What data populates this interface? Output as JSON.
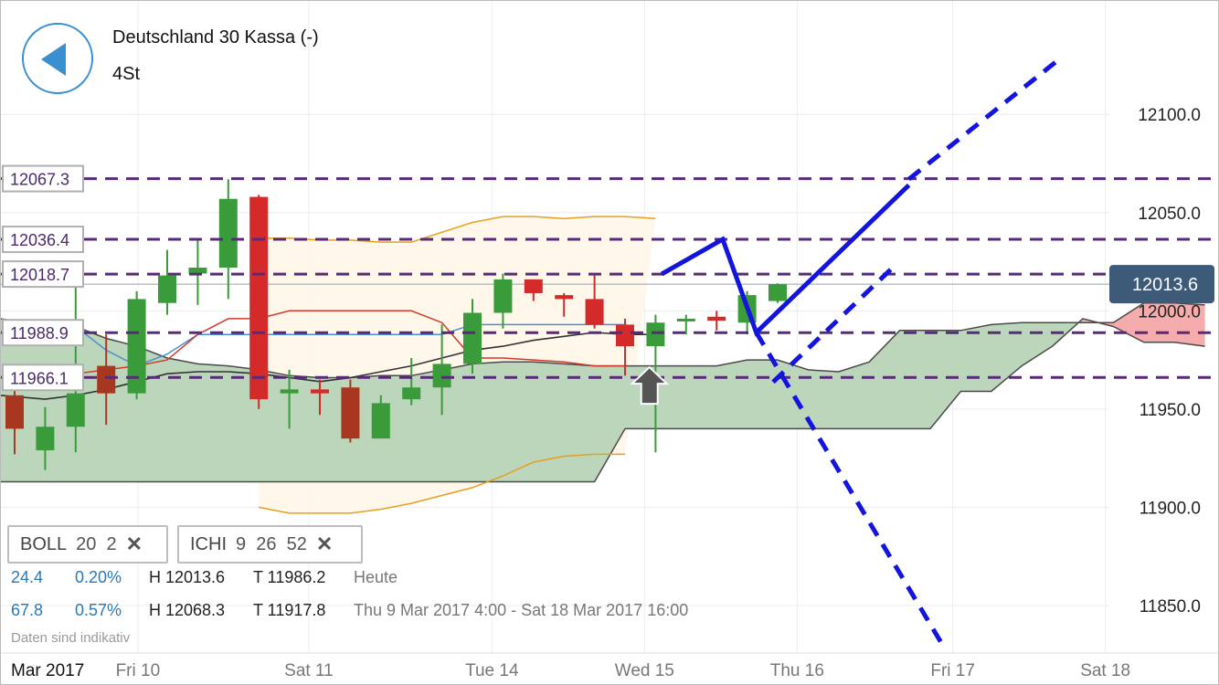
{
  "header": {
    "title": "Deutschland 30 Kassa (-)",
    "timeframe": "4St",
    "back_icon": "back-arrow-icon"
  },
  "indicators": [
    {
      "name": "BOLL",
      "params": "20  2"
    },
    {
      "name": "ICHI",
      "params": "9  26  52"
    }
  ],
  "info_rows": [
    {
      "change": "24.4",
      "change_pct": "0.20%",
      "high": "H 12013.6",
      "low": "T 11986.2",
      "period": "Heute"
    },
    {
      "change": "67.8",
      "change_pct": "0.57%",
      "high": "H 12068.3",
      "low": "T 11917.8",
      "period": "Thu 9 Mar 2017 4:00 - Sat 18 Mar 2017 16:00"
    }
  ],
  "disclaimer": "Daten sind indikativ",
  "chart_data": {
    "type": "candlestick",
    "instrument": "Deutschland 30 Kassa (-)",
    "interval": "4St",
    "colors": {
      "up": "#3a9b3a",
      "down": "#d42a2a",
      "down_dark": "#a8371f",
      "bollinger": "#e6a020",
      "tenkan": "#d03a2a",
      "kijun": "#4b8fd0",
      "chikou": "#333333",
      "cloud_bull": "#b8d4b8",
      "cloud_bear": "#f5a8a8",
      "level_line": "#5a2a7a",
      "drawing": "#1414e0",
      "current_price": "#3d5a78"
    },
    "y_axis": {
      "min": 11830,
      "max": 12148,
      "ticks": [
        "11850.0",
        "11900.0",
        "11950.0",
        "12000.0",
        "12050.0",
        "12100.0"
      ]
    },
    "x_axis": {
      "range": [
        -0.5,
        39
      ],
      "labels": [
        {
          "text": "Mar 2017",
          "x": -0.2,
          "bold": true
        },
        {
          "text": "Fri 10",
          "x": 3.2
        },
        {
          "text": "Sat 11",
          "x": 8.8
        },
        {
          "text": "Tue 14",
          "x": 14.8
        },
        {
          "text": "Wed 15",
          "x": 19.8
        },
        {
          "text": "Thu 16",
          "x": 24.8
        },
        {
          "text": "Fri 17",
          "x": 29.9
        },
        {
          "text": "Sat 18",
          "x": 34.9
        }
      ]
    },
    "current_price": {
      "label": "12013.6",
      "value": 12013.6
    },
    "levels": [
      {
        "label": "12067.3",
        "value": 12067.3
      },
      {
        "label": "12036.4",
        "value": 12036.4
      },
      {
        "label": "12018.7",
        "value": 12018.7
      },
      {
        "label": "11988.9",
        "value": 11988.9
      },
      {
        "label": "11966.1",
        "value": 11966.1
      }
    ],
    "candles": [
      {
        "o": 11957,
        "h": 11960,
        "l": 11927,
        "c": 11940,
        "dir": "down",
        "shade": "dark"
      },
      {
        "o": 11929,
        "h": 11951,
        "l": 11919,
        "c": 11941,
        "dir": "up"
      },
      {
        "o": 11941,
        "h": 12018,
        "l": 11928,
        "c": 11958,
        "dir": "up"
      },
      {
        "o": 11972,
        "h": 11988,
        "l": 11942,
        "c": 11958,
        "dir": "down",
        "shade": "dark"
      },
      {
        "o": 11958,
        "h": 12010,
        "l": 11955,
        "c": 12006,
        "dir": "up"
      },
      {
        "o": 12004,
        "h": 12031,
        "l": 11998,
        "c": 12018,
        "dir": "up"
      },
      {
        "o": 12019,
        "h": 12036,
        "l": 12003,
        "c": 12022,
        "dir": "up"
      },
      {
        "o": 12022,
        "h": 12067,
        "l": 12006,
        "c": 12057,
        "dir": "up"
      },
      {
        "o": 12058,
        "h": 12059,
        "l": 11950,
        "c": 11955,
        "dir": "down"
      },
      {
        "o": 11960,
        "h": 11970,
        "l": 11940,
        "c": 11958,
        "dir": "up"
      },
      {
        "o": 11960,
        "h": 11965,
        "l": 11947,
        "c": 11958,
        "dir": "down"
      },
      {
        "o": 11961,
        "h": 11965,
        "l": 11933,
        "c": 11935,
        "dir": "down",
        "shade": "dark"
      },
      {
        "o": 11935,
        "h": 11957,
        "l": 11935,
        "c": 11953,
        "dir": "up"
      },
      {
        "o": 11955,
        "h": 11976,
        "l": 11952,
        "c": 11961,
        "dir": "up"
      },
      {
        "o": 11961,
        "h": 11993,
        "l": 11947,
        "c": 11973,
        "dir": "up"
      },
      {
        "o": 11973,
        "h": 12006,
        "l": 11968,
        "c": 11999,
        "dir": "up"
      },
      {
        "o": 11999,
        "h": 12019,
        "l": 11991,
        "c": 12016,
        "dir": "up"
      },
      {
        "o": 12016,
        "h": 12016,
        "l": 12005,
        "c": 12009,
        "dir": "down"
      },
      {
        "o": 12008,
        "h": 12009,
        "l": 11997,
        "c": 12006,
        "dir": "down"
      },
      {
        "o": 12006,
        "h": 12018,
        "l": 11991,
        "c": 11993,
        "dir": "down"
      },
      {
        "o": 11993,
        "h": 11996,
        "l": 11967,
        "c": 11982,
        "dir": "down"
      },
      {
        "o": 11982,
        "h": 11998,
        "l": 11928,
        "c": 11994,
        "dir": "up"
      },
      {
        "o": 11995,
        "h": 11998,
        "l": 11988,
        "c": 11996,
        "dir": "up"
      },
      {
        "o": 11997,
        "h": 12000,
        "l": 11990,
        "c": 11995,
        "dir": "down"
      },
      {
        "o": 11994,
        "h": 12010,
        "l": 11988,
        "c": 12008,
        "dir": "up"
      },
      {
        "o": 12005,
        "h": 12014,
        "l": 12004,
        "c": 12013.6,
        "dir": "up"
      }
    ],
    "bollinger_upper": [
      {
        "x": 8,
        "y": 12037
      },
      {
        "x": 9,
        "y": 12037
      },
      {
        "x": 10,
        "y": 12036
      },
      {
        "x": 11,
        "y": 12036
      },
      {
        "x": 12,
        "y": 12035
      },
      {
        "x": 13,
        "y": 12035
      },
      {
        "x": 14,
        "y": 12040
      },
      {
        "x": 15,
        "y": 12045
      },
      {
        "x": 16,
        "y": 12048
      },
      {
        "x": 17,
        "y": 12048
      },
      {
        "x": 18,
        "y": 12047
      },
      {
        "x": 19,
        "y": 12048
      },
      {
        "x": 20,
        "y": 12048
      },
      {
        "x": 21,
        "y": 12047
      }
    ],
    "bollinger_lower": [
      {
        "x": 8,
        "y": 11900
      },
      {
        "x": 9,
        "y": 11897
      },
      {
        "x": 10,
        "y": 11897
      },
      {
        "x": 11,
        "y": 11897
      },
      {
        "x": 12,
        "y": 11899
      },
      {
        "x": 13,
        "y": 11902
      },
      {
        "x": 14,
        "y": 11906
      },
      {
        "x": 15,
        "y": 11910
      },
      {
        "x": 16,
        "y": 11916
      },
      {
        "x": 17,
        "y": 11923
      },
      {
        "x": 18,
        "y": 11926
      },
      {
        "x": 19,
        "y": 11927
      },
      {
        "x": 20,
        "y": 11927
      }
    ],
    "tenkan_sen": [
      {
        "x": 1,
        "y": 11968
      },
      {
        "x": 2,
        "y": 11968
      },
      {
        "x": 3,
        "y": 11970
      },
      {
        "x": 4,
        "y": 11972
      },
      {
        "x": 5,
        "y": 11975
      },
      {
        "x": 6,
        "y": 11988
      },
      {
        "x": 7,
        "y": 11996
      },
      {
        "x": 8,
        "y": 11996
      },
      {
        "x": 9,
        "y": 12000
      },
      {
        "x": 10,
        "y": 12000
      },
      {
        "x": 11,
        "y": 12000
      },
      {
        "x": 12,
        "y": 12000
      },
      {
        "x": 13,
        "y": 12000
      },
      {
        "x": 14,
        "y": 11994
      },
      {
        "x": 15,
        "y": 11976
      },
      {
        "x": 16,
        "y": 11976
      },
      {
        "x": 17,
        "y": 11975
      },
      {
        "x": 18,
        "y": 11974
      },
      {
        "x": 19,
        "y": 11972
      },
      {
        "x": 20,
        "y": 11972
      }
    ],
    "kijun_sen": [
      {
        "x": 2,
        "y": 11992
      },
      {
        "x": 3,
        "y": 11980
      },
      {
        "x": 4,
        "y": 11972
      },
      {
        "x": 5,
        "y": 11978
      },
      {
        "x": 6,
        "y": 11988
      },
      {
        "x": 7,
        "y": 11988
      },
      {
        "x": 8,
        "y": 11988
      },
      {
        "x": 9,
        "y": 11988
      },
      {
        "x": 10,
        "y": 11988
      },
      {
        "x": 11,
        "y": 11988
      },
      {
        "x": 12,
        "y": 11988
      },
      {
        "x": 13,
        "y": 11988
      },
      {
        "x": 14,
        "y": 11988
      },
      {
        "x": 15,
        "y": 11993
      },
      {
        "x": 16,
        "y": 11993
      },
      {
        "x": 17,
        "y": 11993
      },
      {
        "x": 18,
        "y": 11993
      },
      {
        "x": 19,
        "y": 11993
      },
      {
        "x": 20,
        "y": 11993
      }
    ],
    "chikou_span": [
      {
        "x": -0.5,
        "y": 11957
      },
      {
        "x": 1,
        "y": 11955
      },
      {
        "x": 2,
        "y": 11957
      },
      {
        "x": 3,
        "y": 11960
      },
      {
        "x": 4,
        "y": 11964
      },
      {
        "x": 5,
        "y": 11968
      },
      {
        "x": 6,
        "y": 11969
      },
      {
        "x": 7,
        "y": 11969
      },
      {
        "x": 8,
        "y": 11968
      },
      {
        "x": 9,
        "y": 11966
      },
      {
        "x": 10,
        "y": 11964
      },
      {
        "x": 11,
        "y": 11966
      },
      {
        "x": 12,
        "y": 11969
      },
      {
        "x": 13,
        "y": 11972
      },
      {
        "x": 14,
        "y": 11976
      },
      {
        "x": 15,
        "y": 11980
      },
      {
        "x": 16,
        "y": 11982
      },
      {
        "x": 17,
        "y": 11985
      },
      {
        "x": 18,
        "y": 11987
      },
      {
        "x": 19,
        "y": 11989
      },
      {
        "x": 20,
        "y": 11988
      },
      {
        "x": 21,
        "y": 11988
      }
    ],
    "cloud_upper": [
      {
        "x": -0.5,
        "y": 11996
      },
      {
        "x": 1,
        "y": 11993
      },
      {
        "x": 2,
        "y": 11992
      },
      {
        "x": 3,
        "y": 11986
      },
      {
        "x": 4,
        "y": 11982
      },
      {
        "x": 5,
        "y": 11976
      },
      {
        "x": 6,
        "y": 11973
      },
      {
        "x": 7,
        "y": 11972
      },
      {
        "x": 8,
        "y": 11970
      },
      {
        "x": 9,
        "y": 11967
      },
      {
        "x": 10,
        "y": 11966
      },
      {
        "x": 11,
        "y": 11966
      },
      {
        "x": 12,
        "y": 11967
      },
      {
        "x": 13,
        "y": 11967
      },
      {
        "x": 14,
        "y": 11970
      },
      {
        "x": 15,
        "y": 11973
      },
      {
        "x": 16,
        "y": 11974
      },
      {
        "x": 17,
        "y": 11974
      },
      {
        "x": 18,
        "y": 11973
      },
      {
        "x": 19,
        "y": 11972
      },
      {
        "x": 20,
        "y": 11972
      },
      {
        "x": 21,
        "y": 11972
      },
      {
        "x": 22,
        "y": 11972
      },
      {
        "x": 23,
        "y": 11972
      },
      {
        "x": 24,
        "y": 11975
      },
      {
        "x": 25,
        "y": 11975
      },
      {
        "x": 26,
        "y": 11970
      },
      {
        "x": 27,
        "y": 11969
      },
      {
        "x": 28,
        "y": 11974
      },
      {
        "x": 29,
        "y": 11990
      },
      {
        "x": 30,
        "y": 11990
      },
      {
        "x": 31,
        "y": 11990
      },
      {
        "x": 32,
        "y": 11993
      },
      {
        "x": 33,
        "y": 11994
      },
      {
        "x": 34,
        "y": 11994
      },
      {
        "x": 35,
        "y": 11994
      },
      {
        "x": 36,
        "y": 11994
      },
      {
        "x": 37,
        "y": 12004
      },
      {
        "x": 38,
        "y": 12004
      },
      {
        "x": 39,
        "y": 12003
      }
    ],
    "cloud_lower": [
      {
        "x": -0.5,
        "y": 11913
      },
      {
        "x": 19,
        "y": 11913
      },
      {
        "x": 20,
        "y": 11940
      },
      {
        "x": 21,
        "y": 11940
      },
      {
        "x": 22,
        "y": 11940
      },
      {
        "x": 23,
        "y": 11940
      },
      {
        "x": 24,
        "y": 11940
      },
      {
        "x": 25,
        "y": 11940
      },
      {
        "x": 26,
        "y": 11940
      },
      {
        "x": 27,
        "y": 11940
      },
      {
        "x": 28,
        "y": 11940
      },
      {
        "x": 29,
        "y": 11940
      },
      {
        "x": 30,
        "y": 11940
      },
      {
        "x": 31,
        "y": 11959
      },
      {
        "x": 32,
        "y": 11959
      },
      {
        "x": 33,
        "y": 11972
      },
      {
        "x": 34,
        "y": 11982
      },
      {
        "x": 35,
        "y": 11996
      },
      {
        "x": 36,
        "y": 11992
      },
      {
        "x": 37,
        "y": 11984
      },
      {
        "x": 38,
        "y": 11984
      },
      {
        "x": 39,
        "y": 11982
      }
    ],
    "drawings": {
      "solid": [
        {
          "x": 21.2,
          "y": 12018.7
        },
        {
          "x": 23.2,
          "y": 12036.4
        },
        {
          "x": 24.3,
          "y": 11989
        },
        {
          "x": 29.3,
          "y": 12064
        }
      ],
      "dashed": [
        [
          {
            "x": 28.7,
            "y": 12021
          },
          {
            "x": 24.8,
            "y": 11963
          }
        ],
        [
          {
            "x": 29.3,
            "y": 12067
          },
          {
            "x": 34.3,
            "y": 12129
          }
        ],
        [
          {
            "x": 24.3,
            "y": 11989
          },
          {
            "x": 30.4,
            "y": 11830
          }
        ]
      ]
    },
    "marker": {
      "x": 20.8,
      "y": 11962,
      "icon": "up-arrow-icon"
    }
  }
}
